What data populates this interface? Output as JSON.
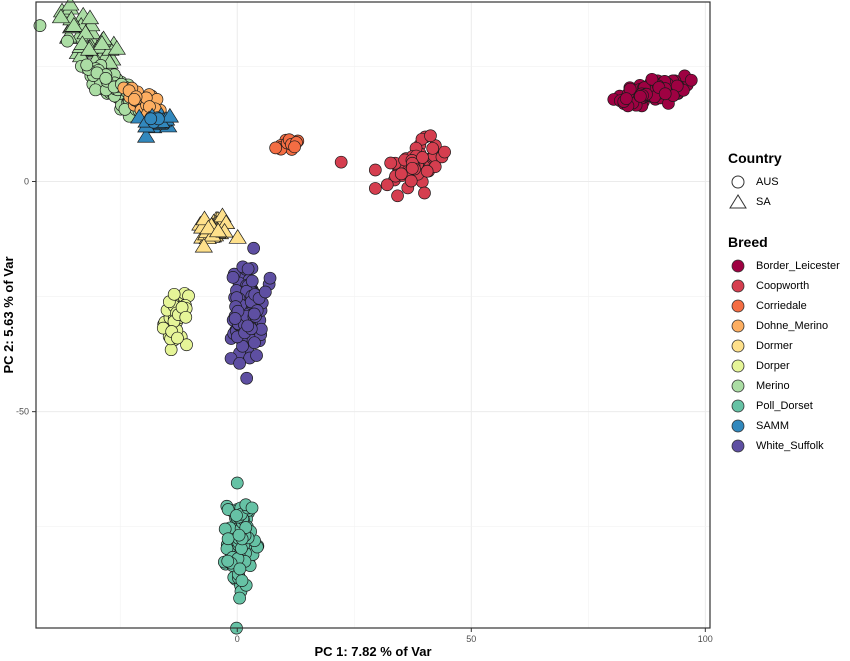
{
  "chart_data": {
    "type": "scatter",
    "title": "",
    "xlabel": "PC 1: 7.82 % of Var",
    "ylabel": "PC 2: 5.63 % of Var",
    "xlim": [
      -43,
      101
    ],
    "ylim": [
      -97,
      39
    ],
    "x_ticks": [
      0,
      50,
      100
    ],
    "x_tick_labels": [
      "0",
      "50",
      "100"
    ],
    "y_ticks": [
      0,
      -50
    ],
    "y_tick_labels": [
      "0",
      "-50"
    ],
    "grid": true,
    "legend_position": "right",
    "legends": {
      "shape": {
        "title": "Country",
        "entries": [
          {
            "label": "AUS",
            "shape": "circle"
          },
          {
            "label": "SA",
            "shape": "triangle"
          }
        ]
      },
      "color": {
        "title": "Breed",
        "entries": [
          {
            "label": "Border_Leicester",
            "color": "#9E0142"
          },
          {
            "label": "Coopworth",
            "color": "#D53E4F"
          },
          {
            "label": "Corriedale",
            "color": "#F46D43"
          },
          {
            "label": "Dohne_Merino",
            "color": "#FDAE61"
          },
          {
            "label": "Dormer",
            "color": "#FEE08B"
          },
          {
            "label": "Dorper",
            "color": "#E6F598"
          },
          {
            "label": "Merino",
            "color": "#ABDDA4"
          },
          {
            "label": "Poll_Dorset",
            "color": "#66C2A5"
          },
          {
            "label": "SAMM",
            "color": "#3288BD"
          },
          {
            "label": "White_Suffolk",
            "color": "#5E4FA2"
          }
        ]
      }
    },
    "series": [
      {
        "name": "Merino",
        "country": "SA",
        "center": [
          -31,
          29
        ],
        "spread": [
          3.5,
          3.5
        ],
        "slope": -1.0,
        "n": 60
      },
      {
        "name": "Merino",
        "country": "AUS",
        "center": [
          -26,
          20
        ],
        "spread": [
          4.0,
          2.0
        ],
        "slope": -0.8,
        "n": 80
      },
      {
        "name": "Dohne_Merino",
        "country": "AUS",
        "center": [
          -19.5,
          17
        ],
        "spread": [
          2.2,
          1.6
        ],
        "slope": -0.6,
        "n": 35
      },
      {
        "name": "SAMM",
        "country": "SA",
        "center": [
          -17,
          13
        ],
        "spread": [
          1.6,
          0.8
        ],
        "slope": 0,
        "n": 18
      },
      {
        "name": "SAMM",
        "country": "AUS",
        "center": [
          -17,
          13.5
        ],
        "spread": [
          1.0,
          0.5
        ],
        "slope": 0,
        "n": 4
      },
      {
        "name": "Corriedale",
        "country": "AUS",
        "center": [
          10.5,
          7.7
        ],
        "spread": [
          1.5,
          0.9
        ],
        "slope": 0,
        "n": 14
      },
      {
        "name": "Coopworth",
        "country": "AUS",
        "center": [
          38,
          3.5
        ],
        "spread": [
          2.4,
          2.2
        ],
        "slope": 0.4,
        "n": 60,
        "outliers": [
          [
            22.2,
            4.2
          ],
          [
            29.5,
            2.5
          ],
          [
            29.5,
            -1.5
          ],
          [
            44.3,
            6.4
          ],
          [
            40,
            -2.5
          ]
        ]
      },
      {
        "name": "Border_Leicester",
        "country": "AUS",
        "center": [
          89,
          19.5
        ],
        "spread": [
          3.4,
          1.1
        ],
        "slope": 0.2,
        "n": 120
      },
      {
        "name": "Dormer",
        "country": "SA",
        "center": [
          -5.5,
          -10.5
        ],
        "spread": [
          2.0,
          1.6
        ],
        "slope": 0,
        "n": 30
      },
      {
        "name": "Dorper",
        "country": "AUS",
        "center": [
          -13,
          -30
        ],
        "spread": [
          1.2,
          2.6
        ],
        "slope": 0,
        "n": 40,
        "outliers": [
          [
            -11,
            -29.5
          ]
        ]
      },
      {
        "name": "White_Suffolk",
        "country": "AUS",
        "center": [
          2,
          -29
        ],
        "spread": [
          1.6,
          5.0
        ],
        "slope": 0,
        "n": 120,
        "outliers": [
          [
            3.5,
            -14.5
          ],
          [
            7,
            -21
          ],
          [
            6,
            -24
          ],
          [
            0.5,
            -39.5
          ]
        ]
      },
      {
        "name": "Poll_Dorset",
        "country": "AUS",
        "center": [
          0.5,
          -78.5
        ],
        "spread": [
          1.3,
          4.8
        ],
        "slope": 0,
        "n": 100,
        "outliers": [
          [
            0,
            -65.5
          ],
          [
            0.5,
            -90.5
          ]
        ]
      }
    ]
  }
}
